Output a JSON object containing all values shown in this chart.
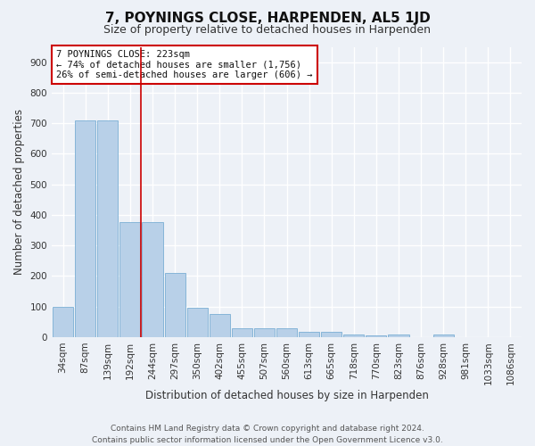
{
  "title": "7, POYNINGS CLOSE, HARPENDEN, AL5 1JD",
  "subtitle": "Size of property relative to detached houses in Harpenden",
  "xlabel": "Distribution of detached houses by size in Harpenden",
  "ylabel": "Number of detached properties",
  "categories": [
    "34sqm",
    "87sqm",
    "139sqm",
    "192sqm",
    "244sqm",
    "297sqm",
    "350sqm",
    "402sqm",
    "455sqm",
    "507sqm",
    "560sqm",
    "613sqm",
    "665sqm",
    "718sqm",
    "770sqm",
    "823sqm",
    "876sqm",
    "928sqm",
    "981sqm",
    "1033sqm",
    "1086sqm"
  ],
  "values": [
    100,
    710,
    710,
    375,
    375,
    210,
    97,
    75,
    28,
    30,
    30,
    18,
    18,
    8,
    5,
    10,
    0,
    8,
    0,
    0,
    0
  ],
  "bar_color": "#b8d0e8",
  "bar_edge_color": "#7aaed4",
  "annotation_box_text": "7 POYNINGS CLOSE: 223sqm\n← 74% of detached houses are smaller (1,756)\n26% of semi-detached houses are larger (606) →",
  "annotation_box_color": "#ffffff",
  "annotation_box_edgecolor": "#cc0000",
  "vline_x": 3.5,
  "vline_color": "#cc0000",
  "ylim": [
    0,
    950
  ],
  "yticks": [
    0,
    100,
    200,
    300,
    400,
    500,
    600,
    700,
    800,
    900
  ],
  "footer_line1": "Contains HM Land Registry data © Crown copyright and database right 2024.",
  "footer_line2": "Contains public sector information licensed under the Open Government Licence v3.0.",
  "bg_color": "#edf1f7",
  "plot_bg_color": "#edf1f7",
  "grid_color": "#ffffff",
  "title_fontsize": 11,
  "subtitle_fontsize": 9,
  "label_fontsize": 8.5,
  "tick_fontsize": 7.5,
  "footer_fontsize": 6.5,
  "annot_fontsize": 7.5
}
